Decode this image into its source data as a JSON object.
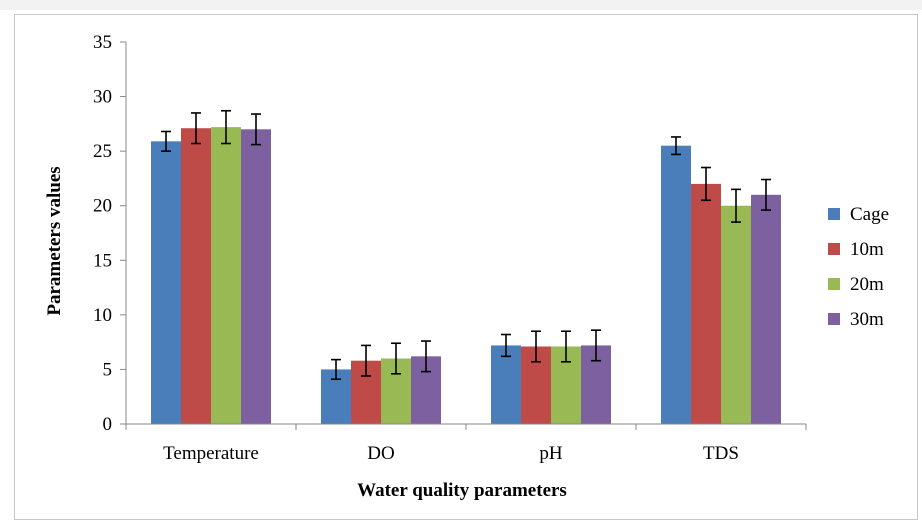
{
  "chart_data": {
    "type": "bar",
    "title": "",
    "xlabel": "Water quality parameters",
    "ylabel": "Parameters values",
    "categories": [
      "Temperature",
      "DO",
      "pH",
      "TDS"
    ],
    "ylim": [
      0,
      35
    ],
    "yticks": [
      0,
      5,
      10,
      15,
      20,
      25,
      30,
      35
    ],
    "grid": false,
    "legend_position": "right",
    "error_bars": true,
    "series": [
      {
        "name": "Cage",
        "color": "#4a7ebb",
        "values": [
          25.9,
          5.0,
          7.2,
          25.5
        ],
        "errors": [
          0.9,
          0.9,
          1.0,
          0.8
        ]
      },
      {
        "name": "10m",
        "color": "#be4b48",
        "values": [
          27.1,
          5.8,
          7.1,
          22.0
        ],
        "errors": [
          1.4,
          1.4,
          1.4,
          1.5
        ]
      },
      {
        "name": "20m",
        "color": "#98b954",
        "values": [
          27.2,
          6.0,
          7.1,
          20.0
        ],
        "errors": [
          1.5,
          1.4,
          1.4,
          1.5
        ]
      },
      {
        "name": "30m",
        "color": "#7d60a0",
        "values": [
          27.0,
          6.2,
          7.2,
          21.0
        ],
        "errors": [
          1.4,
          1.4,
          1.4,
          1.4
        ]
      }
    ]
  }
}
